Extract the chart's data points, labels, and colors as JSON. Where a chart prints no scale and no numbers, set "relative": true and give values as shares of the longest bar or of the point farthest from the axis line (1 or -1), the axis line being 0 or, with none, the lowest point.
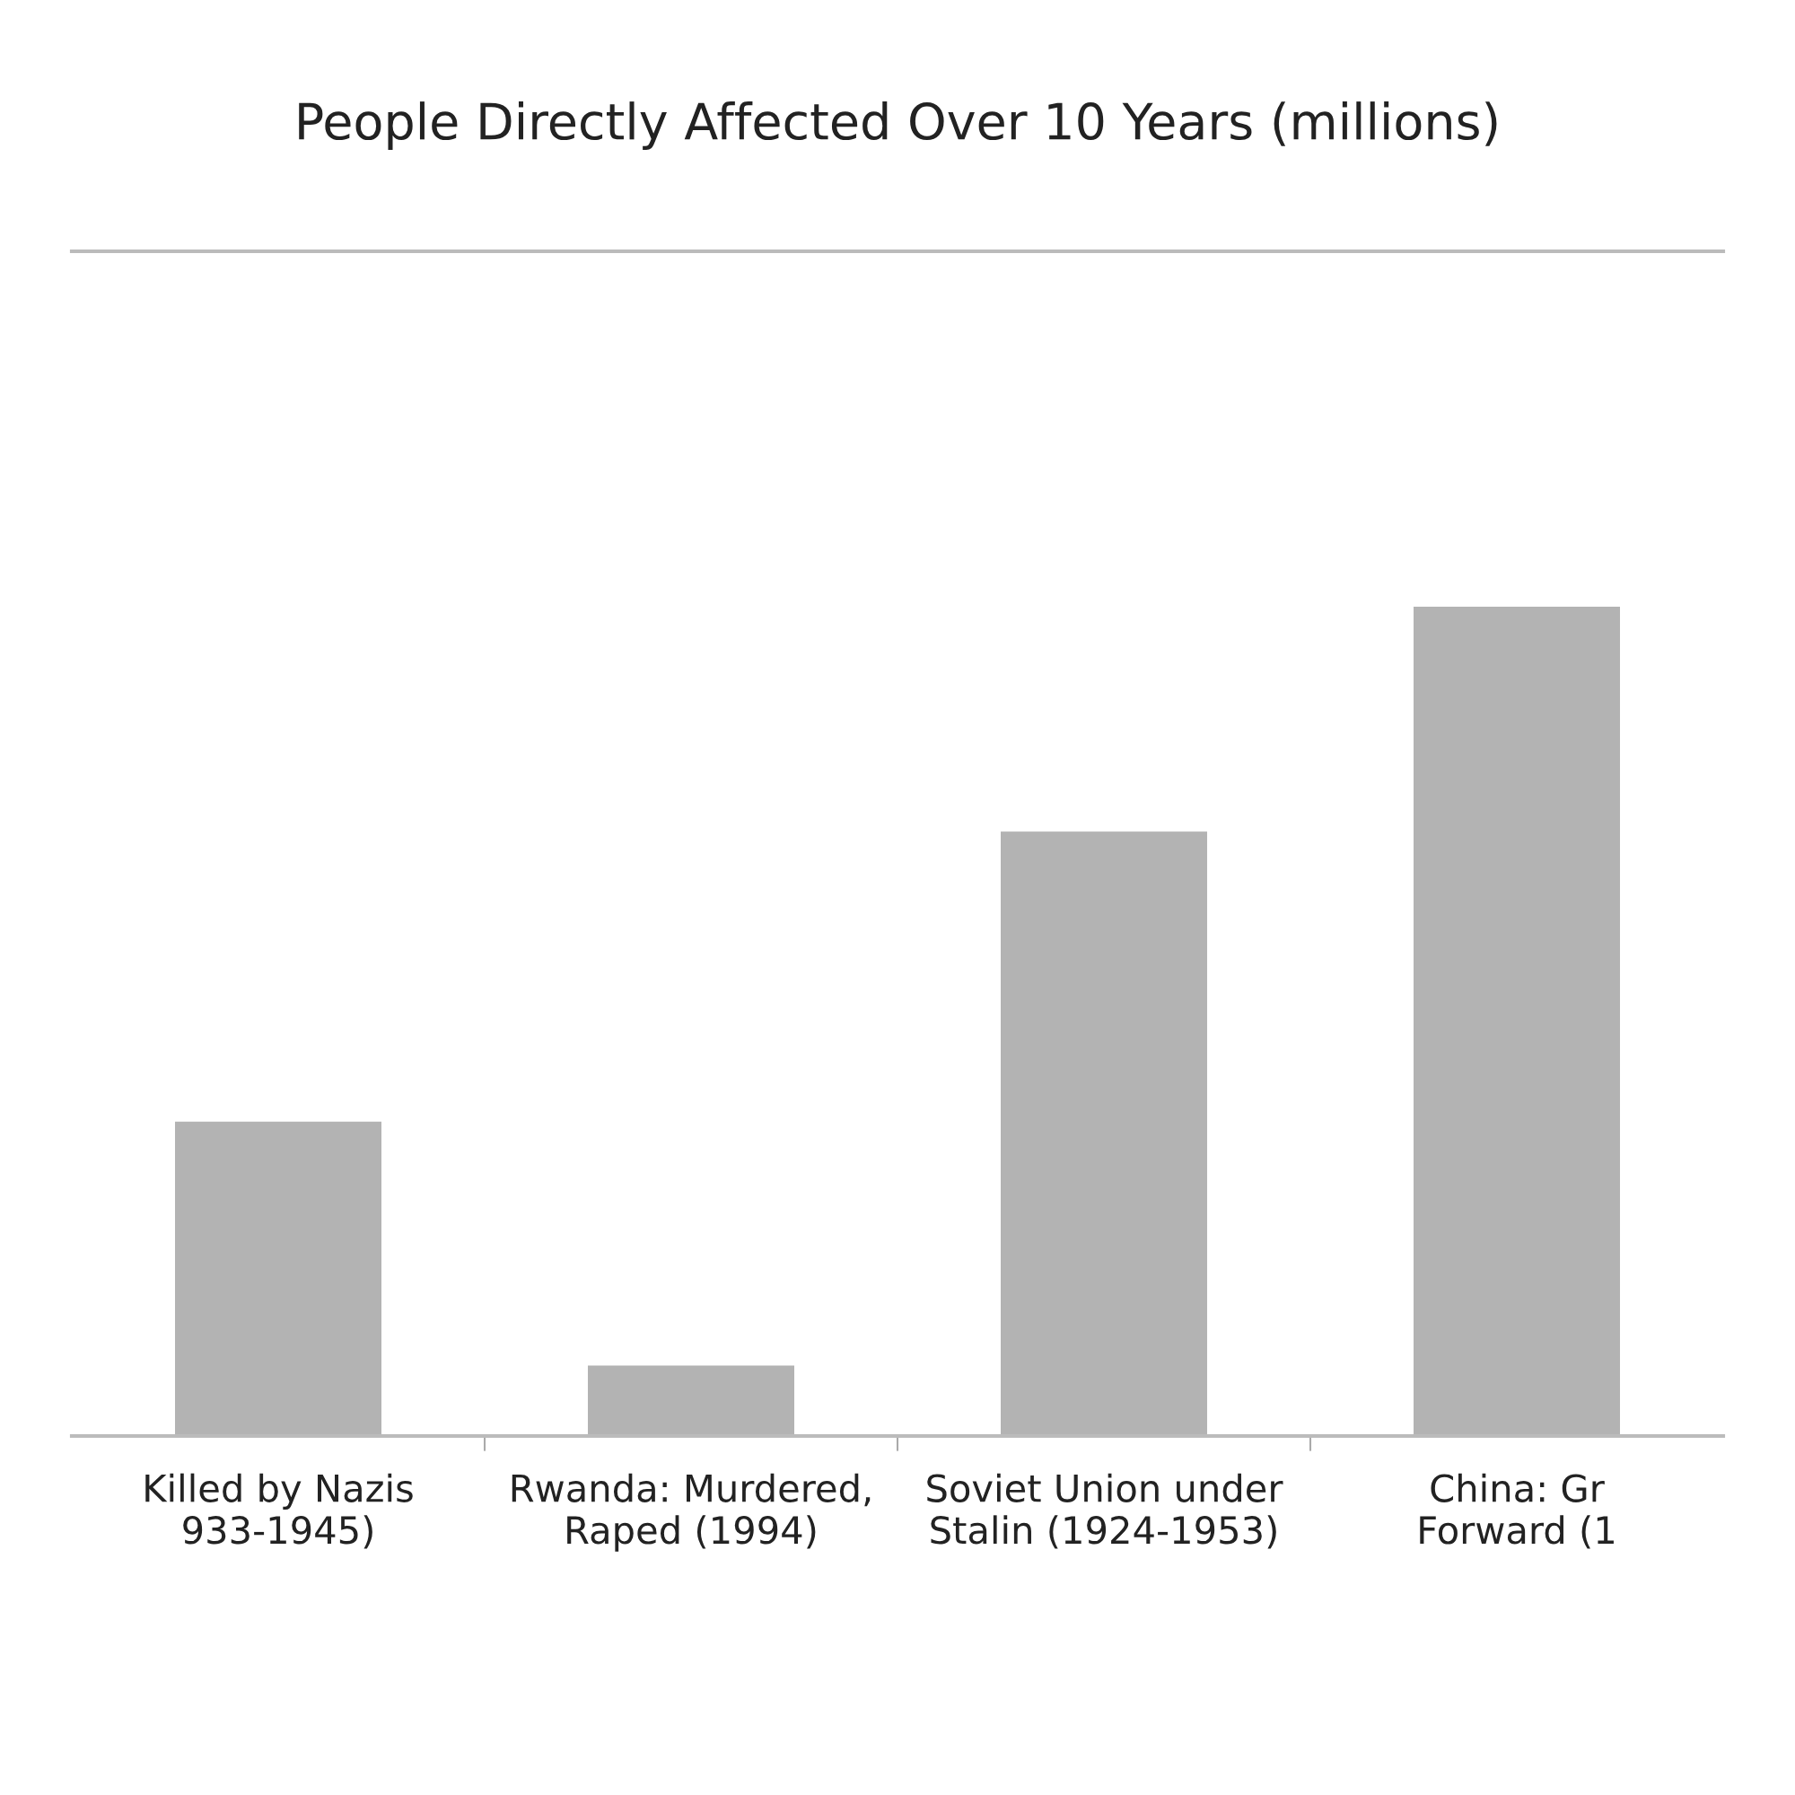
{
  "chart_data": {
    "type": "bar",
    "title": "People Directly Affected Over 10 Years (millions)",
    "categories": [
      "Killed by Nazis\n933-1945)",
      "Rwanda: Murdered,\nRaped (1994)",
      "Soviet Union under\nStalin (1924-1953)",
      "China: Gr\nForward (1"
    ],
    "values": [
      0.379,
      0.085,
      0.729,
      1.0
    ],
    "color": "#b3b3b3",
    "relative": true,
    "grid": false,
    "legend": false
  }
}
